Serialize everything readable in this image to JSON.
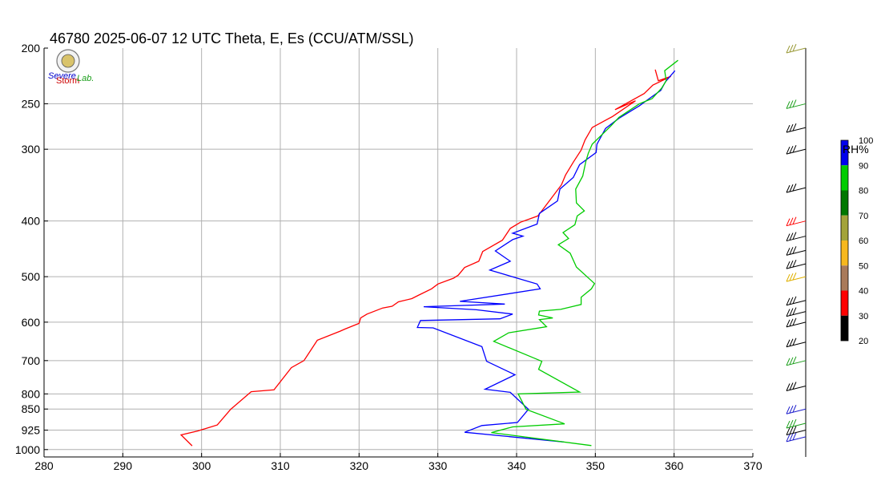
{
  "chart_data": {
    "type": "line",
    "title": "46780  2025-06-07 12 UTC  Theta, E, Es (CCU/ATM/SSL)",
    "xlim": [
      280,
      370
    ],
    "x_ticks": [
      280,
      290,
      300,
      310,
      320,
      330,
      340,
      350,
      360,
      370
    ],
    "y_ticks": [
      200,
      250,
      300,
      400,
      500,
      600,
      700,
      800,
      850,
      925,
      1000
    ],
    "y_scale": "log-pressure",
    "ylim": [
      1030,
      200
    ],
    "grid": true,
    "series": [
      {
        "key": "theta",
        "color": "#ff0000",
        "points": [
          [
            298.8,
            985
          ],
          [
            297.4,
            943
          ],
          [
            299.5,
            928
          ],
          [
            302.0,
            906
          ],
          [
            303.7,
            851
          ],
          [
            306.3,
            793
          ],
          [
            309.2,
            787
          ],
          [
            311.4,
            720
          ],
          [
            313.0,
            700
          ],
          [
            314.7,
            645
          ],
          [
            317.6,
            622
          ],
          [
            318.2,
            617
          ],
          [
            320.0,
            603
          ],
          [
            320.2,
            590
          ],
          [
            321.0,
            581
          ],
          [
            323.0,
            567
          ],
          [
            324.2,
            563
          ],
          [
            325.0,
            553
          ],
          [
            326.7,
            546
          ],
          [
            327.5,
            539
          ],
          [
            329.2,
            525
          ],
          [
            330.0,
            515
          ],
          [
            332.0,
            503
          ],
          [
            332.6,
            497
          ],
          [
            333.4,
            482
          ],
          [
            335.2,
            470
          ],
          [
            335.7,
            452
          ],
          [
            338.2,
            432
          ],
          [
            339.2,
            412
          ],
          [
            340.5,
            402
          ],
          [
            342.7,
            392
          ],
          [
            343.2,
            384
          ],
          [
            345.7,
            346
          ],
          [
            346.2,
            333
          ],
          [
            347.2,
            316
          ],
          [
            348.2,
            301
          ],
          [
            348.7,
            289
          ],
          [
            349.6,
            275
          ],
          [
            352.2,
            263
          ],
          [
            355.1,
            247
          ],
          [
            352.5,
            256
          ],
          [
            356.2,
            240
          ],
          [
            357.3,
            232
          ],
          [
            359.6,
            224
          ],
          [
            358.0,
            228
          ],
          [
            357.6,
            218
          ]
        ]
      },
      {
        "key": "E",
        "color": "#0000ff",
        "points": [
          [
            346.0,
            970
          ],
          [
            333.4,
            933
          ],
          [
            335.6,
            908
          ],
          [
            340.1,
            897
          ],
          [
            341.5,
            851
          ],
          [
            339.2,
            795
          ],
          [
            336.0,
            785
          ],
          [
            339.8,
            741
          ],
          [
            336.2,
            702
          ],
          [
            335.6,
            662
          ],
          [
            329.4,
            614
          ],
          [
            327.4,
            613
          ],
          [
            327.8,
            596
          ],
          [
            337.9,
            592
          ],
          [
            339.5,
            581
          ],
          [
            334.9,
            571
          ],
          [
            328.2,
            564
          ],
          [
            338.5,
            558
          ],
          [
            332.8,
            552
          ],
          [
            343.0,
            525
          ],
          [
            342.6,
            515
          ],
          [
            336.6,
            487
          ],
          [
            339.2,
            470
          ],
          [
            337.3,
            451
          ],
          [
            339.5,
            431
          ],
          [
            340.8,
            425
          ],
          [
            339.5,
            420
          ],
          [
            342.6,
            405
          ],
          [
            342.9,
            388
          ],
          [
            345.2,
            369
          ],
          [
            345.5,
            352
          ],
          [
            347.2,
            336
          ],
          [
            348.0,
            319
          ],
          [
            350.1,
            304
          ],
          [
            350.2,
            294
          ],
          [
            351.3,
            276
          ],
          [
            353.0,
            265
          ],
          [
            355.6,
            252
          ],
          [
            357.0,
            244
          ],
          [
            358.3,
            237
          ],
          [
            358.9,
            229
          ],
          [
            360.1,
            219
          ]
        ]
      },
      {
        "key": "Es",
        "color": "#00cc00",
        "points": [
          [
            349.5,
            984
          ],
          [
            336.8,
            934
          ],
          [
            339.5,
            913
          ],
          [
            346.1,
            902
          ],
          [
            341.2,
            851
          ],
          [
            340.2,
            800
          ],
          [
            348.0,
            794
          ],
          [
            342.8,
            725
          ],
          [
            343.2,
            702
          ],
          [
            337.1,
            648
          ],
          [
            339.0,
            626
          ],
          [
            343.8,
            611
          ],
          [
            342.9,
            594
          ],
          [
            344.6,
            590
          ],
          [
            342.8,
            583
          ],
          [
            342.9,
            574
          ],
          [
            345.6,
            570
          ],
          [
            348.2,
            559
          ],
          [
            348.2,
            543
          ],
          [
            349.5,
            525
          ],
          [
            349.9,
            514
          ],
          [
            347.6,
            481
          ],
          [
            346.8,
            455
          ],
          [
            345.3,
            440
          ],
          [
            346.6,
            429
          ],
          [
            345.9,
            419
          ],
          [
            347.4,
            406
          ],
          [
            347.7,
            392
          ],
          [
            348.6,
            384
          ],
          [
            347.6,
            372
          ],
          [
            347.5,
            352
          ],
          [
            348.4,
            334
          ],
          [
            348.8,
            315
          ],
          [
            349.1,
            305
          ],
          [
            349.6,
            294
          ],
          [
            352.0,
            273
          ],
          [
            353.0,
            264
          ],
          [
            355.6,
            250
          ],
          [
            357.2,
            245
          ],
          [
            358.4,
            235
          ],
          [
            359.0,
            228
          ],
          [
            358.8,
            219
          ],
          [
            360.5,
            210
          ]
        ]
      }
    ],
    "wind_colors": {
      "barbs": [
        {
          "p": 200,
          "color": "#9b9b3a"
        },
        {
          "p": 250,
          "color": "#1a9e1a"
        },
        {
          "p": 275,
          "color": "#000000"
        },
        {
          "p": 300,
          "color": "#000000"
        },
        {
          "p": 350,
          "color": "#000000"
        },
        {
          "p": 400,
          "color": "#ff0000"
        },
        {
          "p": 425,
          "color": "#000000"
        },
        {
          "p": 450,
          "color": "#000000"
        },
        {
          "p": 475,
          "color": "#000000"
        },
        {
          "p": 500,
          "color": "#e0b000"
        },
        {
          "p": 550,
          "color": "#000000"
        },
        {
          "p": 575,
          "color": "#000000"
        },
        {
          "p": 600,
          "color": "#000000"
        },
        {
          "p": 650,
          "color": "#000000"
        },
        {
          "p": 700,
          "color": "#1a9e1a"
        },
        {
          "p": 775,
          "color": "#000000"
        },
        {
          "p": 850,
          "color": "#1c1ccc"
        },
        {
          "p": 900,
          "color": "#1a9e1a"
        },
        {
          "p": 925,
          "color": "#000000"
        },
        {
          "p": 950,
          "color": "#1c1ccc"
        }
      ]
    },
    "colorbar": {
      "label": "RH%",
      "ticks": [
        100,
        90,
        80,
        70,
        60,
        50,
        40,
        30,
        20
      ],
      "segments": [
        {
          "from": 90,
          "to": 100,
          "color": "#0000ee"
        },
        {
          "from": 80,
          "to": 90,
          "color": "#00cc00"
        },
        {
          "from": 70,
          "to": 80,
          "color": "#007700"
        },
        {
          "from": 60,
          "to": 70,
          "color": "#a3a33a"
        },
        {
          "from": 50,
          "to": 60,
          "color": "#f7b81e"
        },
        {
          "from": 40,
          "to": 50,
          "color": "#a97a5a"
        },
        {
          "from": 30,
          "to": 40,
          "color": "#ff0000"
        },
        {
          "from": 20,
          "to": 30,
          "color": "#000000"
        }
      ]
    }
  },
  "logo": {
    "text_severe": "Severe",
    "text_storm": "Storm",
    "text_lab": "Lab."
  }
}
